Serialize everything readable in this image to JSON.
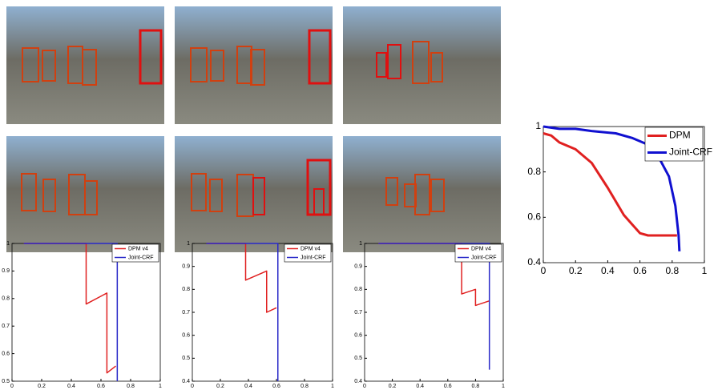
{
  "chart_data": [
    {
      "type": "line",
      "xlim": [
        0,
        1
      ],
      "ylim": [
        0.5,
        1
      ],
      "xticks": [
        0,
        0.2,
        0.4,
        0.6,
        0.8,
        1
      ],
      "yticks": [
        0.5,
        0.6,
        0.7,
        0.8,
        0.9,
        1
      ],
      "legend": "upper right",
      "series": [
        {
          "name": "DPM v4",
          "color": "#e02020",
          "x": [
            0.08,
            0.5,
            0.5,
            0.64,
            0.64,
            0.7
          ],
          "values": [
            1,
            1,
            0.78,
            0.82,
            0.53,
            0.555
          ]
        },
        {
          "name": "Joint-CRF",
          "color": "#2828c8",
          "x": [
            0.08,
            0.71,
            0.71
          ],
          "values": [
            1,
            1,
            0.5
          ]
        }
      ]
    },
    {
      "type": "line",
      "xlim": [
        0,
        1
      ],
      "ylim": [
        0.4,
        1
      ],
      "xticks": [
        0,
        0.2,
        0.4,
        0.6,
        0.8,
        1
      ],
      "yticks": [
        0.4,
        0.5,
        0.6,
        0.7,
        0.8,
        0.9,
        1
      ],
      "legend": "upper right",
      "series": [
        {
          "name": "DPM v4",
          "color": "#e02020",
          "x": [
            0.1,
            0.38,
            0.38,
            0.53,
            0.53,
            0.6
          ],
          "values": [
            1,
            1,
            0.84,
            0.88,
            0.7,
            0.72
          ]
        },
        {
          "name": "Joint-CRF",
          "color": "#2828c8",
          "x": [
            0.1,
            0.61,
            0.61
          ],
          "values": [
            1,
            1,
            0.4
          ]
        }
      ]
    },
    {
      "type": "line",
      "xlim": [
        0,
        1
      ],
      "ylim": [
        0.4,
        1
      ],
      "xticks": [
        0,
        0.2,
        0.4,
        0.6,
        0.8,
        1
      ],
      "yticks": [
        0.4,
        0.5,
        0.6,
        0.7,
        0.8,
        0.9,
        1
      ],
      "legend": "upper right",
      "series": [
        {
          "name": "DPM v4",
          "color": "#e02020",
          "x": [
            0.1,
            0.7,
            0.7,
            0.8,
            0.8,
            0.9
          ],
          "values": [
            1,
            1,
            0.78,
            0.8,
            0.73,
            0.75
          ]
        },
        {
          "name": "Joint-CRF",
          "color": "#2828c8",
          "x": [
            0.1,
            0.9,
            0.9
          ],
          "values": [
            1,
            1,
            0.45
          ]
        }
      ]
    },
    {
      "type": "line",
      "xlim": [
        0,
        1
      ],
      "ylim": [
        0.4,
        1
      ],
      "xticks": [
        0,
        0.2,
        0.4,
        0.6,
        0.8,
        1
      ],
      "yticks": [
        0.4,
        0.6,
        0.8,
        1
      ],
      "legend": "upper right",
      "series": [
        {
          "name": "DPM",
          "color": "#e02020",
          "x": [
            0,
            0.05,
            0.1,
            0.2,
            0.3,
            0.4,
            0.5,
            0.55,
            0.6,
            0.65,
            0.75,
            0.83
          ],
          "values": [
            0.97,
            0.96,
            0.93,
            0.9,
            0.84,
            0.73,
            0.61,
            0.57,
            0.53,
            0.52,
            0.52,
            0.52
          ]
        },
        {
          "name": "Joint-CRF",
          "color": "#1010d0",
          "x": [
            0,
            0.1,
            0.2,
            0.3,
            0.45,
            0.55,
            0.65,
            0.72,
            0.78,
            0.82,
            0.84,
            0.845
          ],
          "values": [
            1,
            0.99,
            0.99,
            0.98,
            0.97,
            0.95,
            0.92,
            0.86,
            0.78,
            0.65,
            0.52,
            0.45
          ]
        }
      ]
    }
  ]
}
